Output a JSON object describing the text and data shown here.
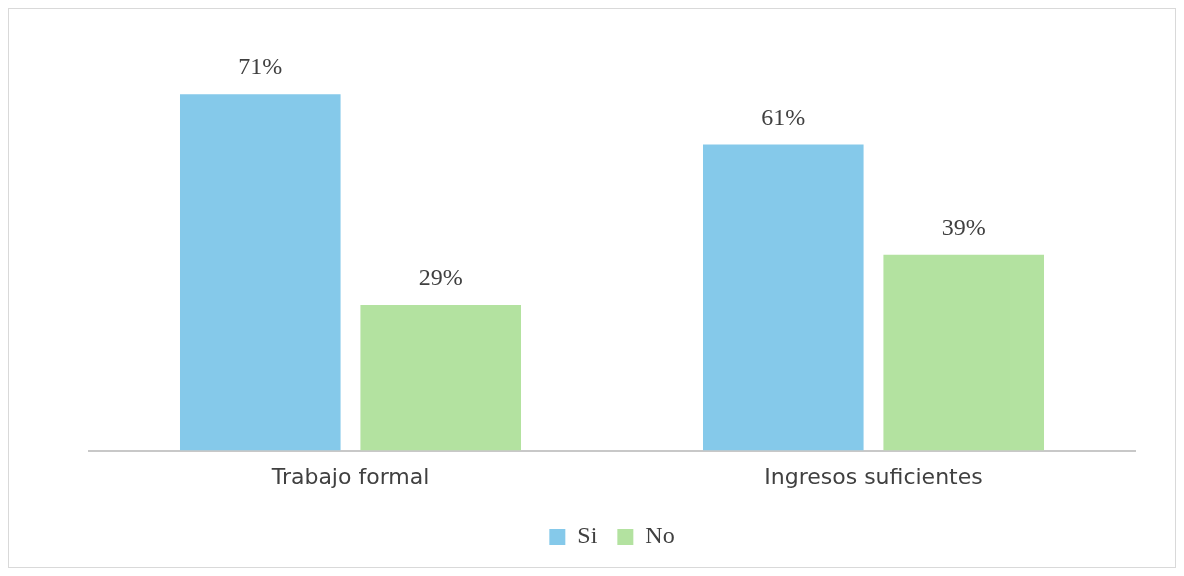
{
  "chart_data": {
    "type": "bar",
    "categories": [
      "Trabajo formal",
      "Ingresos suficientes"
    ],
    "series": [
      {
        "name": "Si",
        "color": "#85c9ea",
        "values": [
          71,
          61
        ],
        "value_labels": [
          "71%",
          "61%"
        ]
      },
      {
        "name": "No",
        "color": "#b3e2a0",
        "values": [
          29,
          39
        ],
        "value_labels": [
          "29%",
          "39%"
        ]
      }
    ],
    "legend": "bottom"
  }
}
